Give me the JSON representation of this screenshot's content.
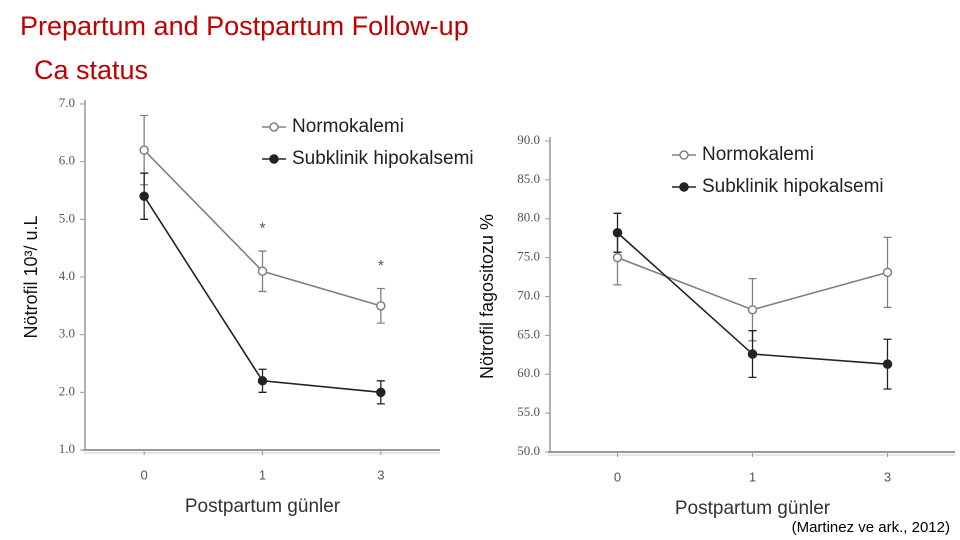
{
  "title": "Prepartum and Postpartum Follow-up",
  "subtitle": "Ca status",
  "citation": "(Martinez ve ark., 2012)",
  "chart_data": [
    {
      "type": "line",
      "ylabel": "Nötrofil 10³/ u.L",
      "xlabel": "Postpartum günler",
      "categories": [
        "0",
        "1",
        "3"
      ],
      "ylim": [
        1,
        7
      ],
      "yticks": [
        {
          "value": 1,
          "label": "1.0"
        },
        {
          "value": 2,
          "label": "2.0"
        },
        {
          "value": 3,
          "label": "3.0"
        },
        {
          "value": 4,
          "label": "4.0"
        },
        {
          "value": 5,
          "label": "5.0"
        },
        {
          "value": 6,
          "label": "6.0"
        },
        {
          "value": 7,
          "label": "7.0"
        }
      ],
      "series": [
        {
          "name": "Normokalemi",
          "color": "#808080",
          "marker": "open",
          "values": [
            6.2,
            4.1,
            3.5
          ],
          "errors": [
            0.6,
            0.35,
            0.3
          ]
        },
        {
          "name": "Subklinik hipokalsemi",
          "color": "#222222",
          "marker": "filled",
          "values": [
            5.4,
            2.2,
            2.0
          ],
          "errors": [
            0.4,
            0.2,
            0.2
          ]
        }
      ],
      "annotations": [
        {
          "text": "*",
          "category": "1"
        },
        {
          "text": "*",
          "category": "3"
        }
      ]
    },
    {
      "type": "line",
      "ylabel": "Nötrofil fagositozu %",
      "xlabel": "Postpartum günler",
      "categories": [
        "0",
        "1",
        "3"
      ],
      "ylim": [
        50,
        90
      ],
      "yticks": [
        {
          "value": 50,
          "label": "50.0"
        },
        {
          "value": 55,
          "label": "55.0"
        },
        {
          "value": 60,
          "label": "60.0"
        },
        {
          "value": 65,
          "label": "65.0"
        },
        {
          "value": 70,
          "label": "70.0"
        },
        {
          "value": 75,
          "label": "75.0"
        },
        {
          "value": 80,
          "label": "80.0"
        },
        {
          "value": 85,
          "label": "85.0"
        },
        {
          "value": 90,
          "label": "90.0"
        }
      ],
      "series": [
        {
          "name": "Normokalemi",
          "color": "#808080",
          "marker": "open",
          "values": [
            75,
            68.3,
            73.1
          ],
          "errors": [
            3.5,
            4,
            4.5
          ]
        },
        {
          "name": "Subklinik hipokalsemi",
          "color": "#222222",
          "marker": "filled",
          "values": [
            78.2,
            62.6,
            61.3
          ],
          "errors": [
            2.5,
            3,
            3.2
          ]
        }
      ]
    }
  ]
}
